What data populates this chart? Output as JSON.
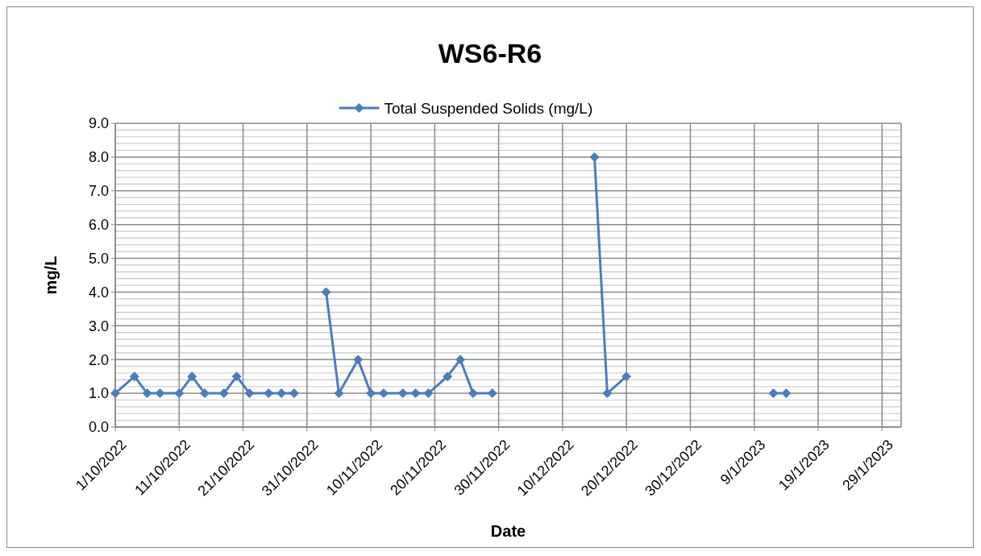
{
  "chart_data": {
    "type": "line",
    "title": "WS6-R6",
    "xlabel": "Date",
    "ylabel": "mg/L",
    "legend": "top",
    "grid": true,
    "marker": "diamond",
    "line_style": "solid",
    "xlim": [
      "2022-10-01",
      "2023-02-01"
    ],
    "xticks": [
      {
        "value": "2022-10-01",
        "label": "1/10/2022"
      },
      {
        "value": "2022-10-11",
        "label": "11/10/2022"
      },
      {
        "value": "2022-10-21",
        "label": "21/10/2022"
      },
      {
        "value": "2022-10-31",
        "label": "31/10/2022"
      },
      {
        "value": "2022-11-10",
        "label": "10/11/2022"
      },
      {
        "value": "2022-11-20",
        "label": "20/11/2022"
      },
      {
        "value": "2022-11-30",
        "label": "30/11/2022"
      },
      {
        "value": "2022-12-10",
        "label": "10/12/2022"
      },
      {
        "value": "2022-12-20",
        "label": "20/12/2022"
      },
      {
        "value": "2022-12-30",
        "label": "30/12/2022"
      },
      {
        "value": "2023-01-09",
        "label": "9/1/2023"
      },
      {
        "value": "2023-01-19",
        "label": "19/1/2023"
      },
      {
        "value": "2023-01-29",
        "label": "29/1/2023"
      }
    ],
    "ylim": [
      0,
      9
    ],
    "yticks": [
      {
        "value": 0,
        "label": "0.0"
      },
      {
        "value": 1,
        "label": "1.0"
      },
      {
        "value": 2,
        "label": "2.0"
      },
      {
        "value": 3,
        "label": "3.0"
      },
      {
        "value": 4,
        "label": "4.0"
      },
      {
        "value": 5,
        "label": "5.0"
      },
      {
        "value": 6,
        "label": "6.0"
      },
      {
        "value": 7,
        "label": "7.0"
      },
      {
        "value": 8,
        "label": "8.0"
      },
      {
        "value": 9,
        "label": "9.0"
      }
    ],
    "series": [
      {
        "name": "Total Suspended Solids (mg/L)",
        "color": "#4a7ebb",
        "x": [
          "2022-10-01",
          "2022-10-04",
          "2022-10-06",
          "2022-10-08",
          "2022-10-11",
          "2022-10-13",
          "2022-10-15",
          "2022-10-18",
          "2022-10-20",
          "2022-10-22",
          "2022-10-25",
          "2022-10-27",
          "2022-10-29",
          "2022-11-01",
          "2022-11-03",
          "2022-11-05",
          "2022-11-08",
          "2022-11-10",
          "2022-11-12",
          "2022-11-15",
          "2022-11-17",
          "2022-11-19",
          "2022-11-22",
          "2022-11-24",
          "2022-11-26",
          "2022-11-29",
          "2022-12-05",
          "2022-12-15",
          "2022-12-17",
          "2022-12-20",
          "2022-12-30",
          "2023-01-12",
          "2023-01-14"
        ],
        "values": [
          1,
          1.5,
          1,
          1,
          1,
          1.5,
          1,
          1,
          1.5,
          1,
          1,
          1,
          1,
          null,
          4,
          1,
          2,
          1,
          1,
          1,
          1,
          1,
          1.5,
          2,
          1,
          1,
          null,
          8,
          1,
          1.5,
          null,
          1,
          1
        ]
      }
    ]
  }
}
